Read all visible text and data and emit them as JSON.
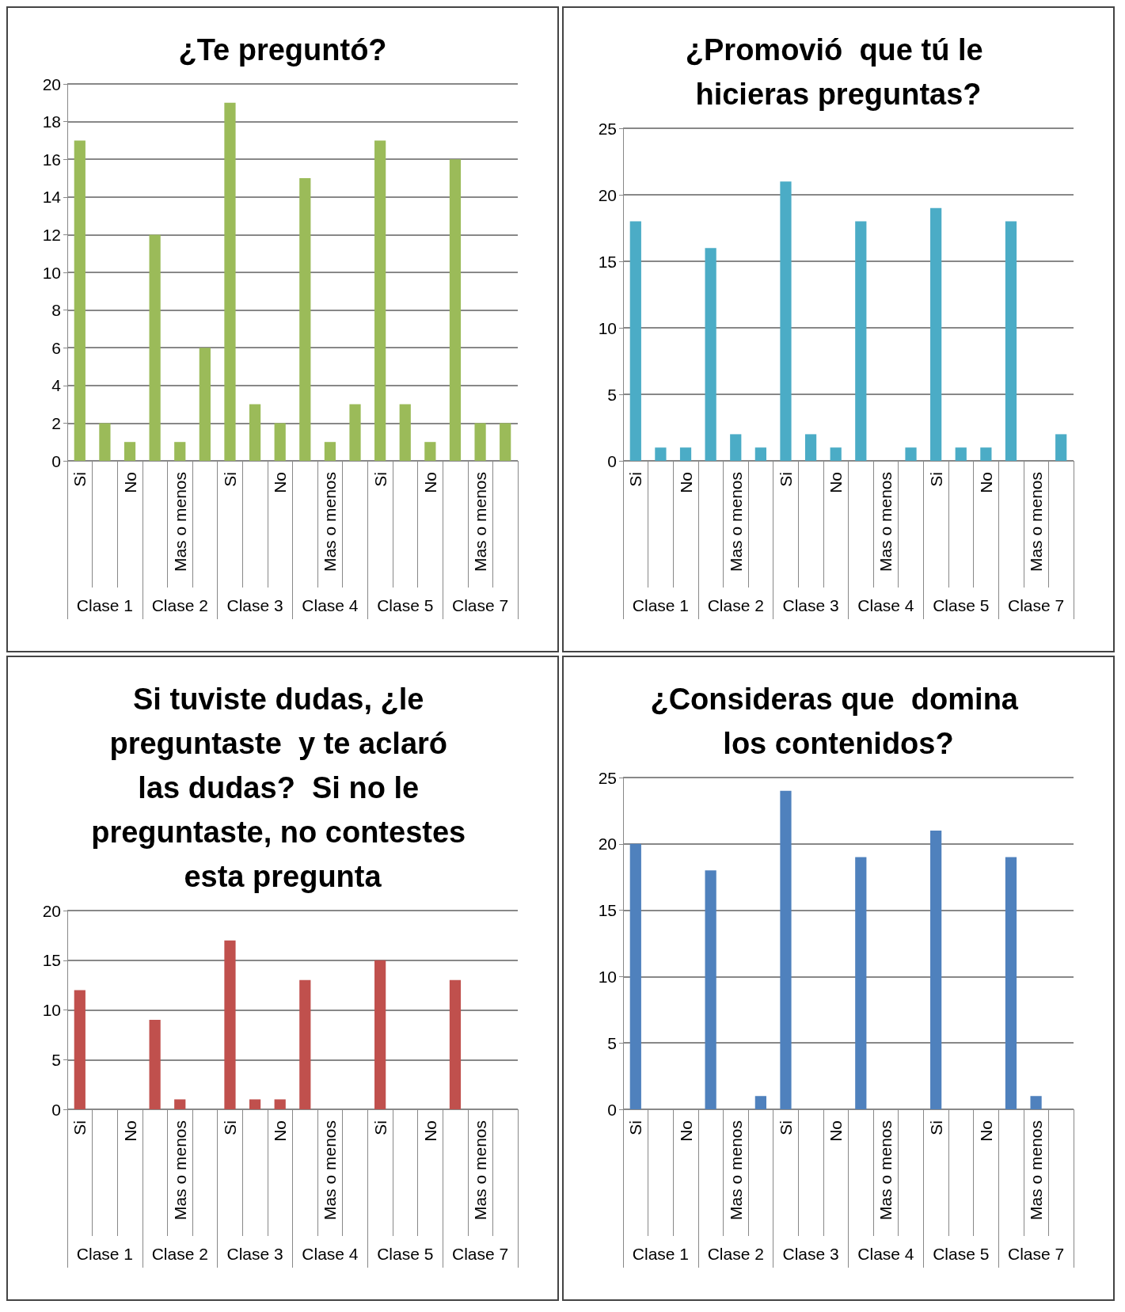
{
  "chart_data": [
    {
      "type": "bar",
      "title": "¿Te preguntó?",
      "categories": [
        "Si",
        null,
        "No",
        null,
        "Mas o menos",
        null,
        "Si",
        null,
        "No",
        null,
        "Mas o menos",
        null,
        "Si",
        null,
        "No",
        null,
        "Mas o menos",
        null
      ],
      "values": [
        17,
        2,
        1,
        12,
        1,
        6,
        19,
        3,
        2,
        15,
        1,
        3,
        17,
        3,
        1,
        16,
        2,
        2
      ],
      "color": "#9bbb59",
      "ylim": [
        0,
        20
      ],
      "yticks": [
        0,
        2,
        4,
        6,
        8,
        10,
        12,
        14,
        16,
        18,
        20
      ],
      "grid": "y",
      "annotations": [
        "Clase 1",
        "Clase 2",
        "Clase 3",
        "Clase 4",
        "Clase 5",
        "Clase 7"
      ]
    },
    {
      "type": "bar",
      "title": "¿Promovió  que tú le hicieras preguntas?",
      "categories": [
        "Si",
        null,
        "No",
        null,
        "Mas o menos",
        null,
        "Si",
        null,
        "No",
        null,
        "Mas o menos",
        null,
        "Si",
        null,
        "No",
        null,
        "Mas o menos",
        null
      ],
      "values": [
        18,
        1,
        1,
        16,
        2,
        1,
        21,
        2,
        1,
        18,
        0,
        1,
        19,
        1,
        1,
        18,
        0,
        2
      ],
      "color": "#4bacc6",
      "ylim": [
        0,
        25
      ],
      "yticks": [
        0,
        5,
        10,
        15,
        20,
        25
      ],
      "grid": "y",
      "annotations": [
        "Clase 1",
        "Clase 2",
        "Clase 3",
        "Clase 4",
        "Clase 5",
        "Clase 7"
      ]
    },
    {
      "type": "bar",
      "title": "Si tuviste dudas, ¿le preguntaste  y te aclaró las dudas?  Si no le preguntaste, no contestes esta pregunta",
      "categories": [
        "Si",
        null,
        "No",
        null,
        "Mas o menos",
        null,
        "Si",
        null,
        "No",
        null,
        "Mas o menos",
        null,
        "Si",
        null,
        "No",
        null,
        "Mas o menos",
        null
      ],
      "values": [
        12,
        0,
        0,
        9,
        1,
        0,
        17,
        1,
        1,
        13,
        0,
        0,
        15,
        0,
        0,
        13,
        0,
        0
      ],
      "color": "#c0504d",
      "ylim": [
        0,
        20
      ],
      "yticks": [
        0,
        5,
        10,
        15,
        20
      ],
      "grid": "y",
      "annotations": [
        "Clase 1",
        "Clase 2",
        "Clase 3",
        "Clase 4",
        "Clase 5",
        "Clase 7"
      ]
    },
    {
      "type": "bar",
      "title": "¿Consideras que  domina los contenidos?",
      "categories": [
        "Si",
        null,
        "No",
        null,
        "Mas o menos",
        null,
        "Si",
        null,
        "No",
        null,
        "Mas o menos",
        null,
        "Si",
        null,
        "No",
        null,
        "Mas o menos",
        null
      ],
      "values": [
        20,
        0,
        0,
        18,
        0,
        1,
        24,
        0,
        0,
        19,
        0,
        0,
        21,
        0,
        0,
        19,
        1,
        0
      ],
      "color": "#4f81bd",
      "ylim": [
        0,
        25
      ],
      "yticks": [
        0,
        5,
        10,
        15,
        20,
        25
      ],
      "grid": "y",
      "annotations": [
        "Clase 1",
        "Clase 2",
        "Clase 3",
        "Clase 4",
        "Clase 5",
        "Clase 7"
      ]
    }
  ]
}
